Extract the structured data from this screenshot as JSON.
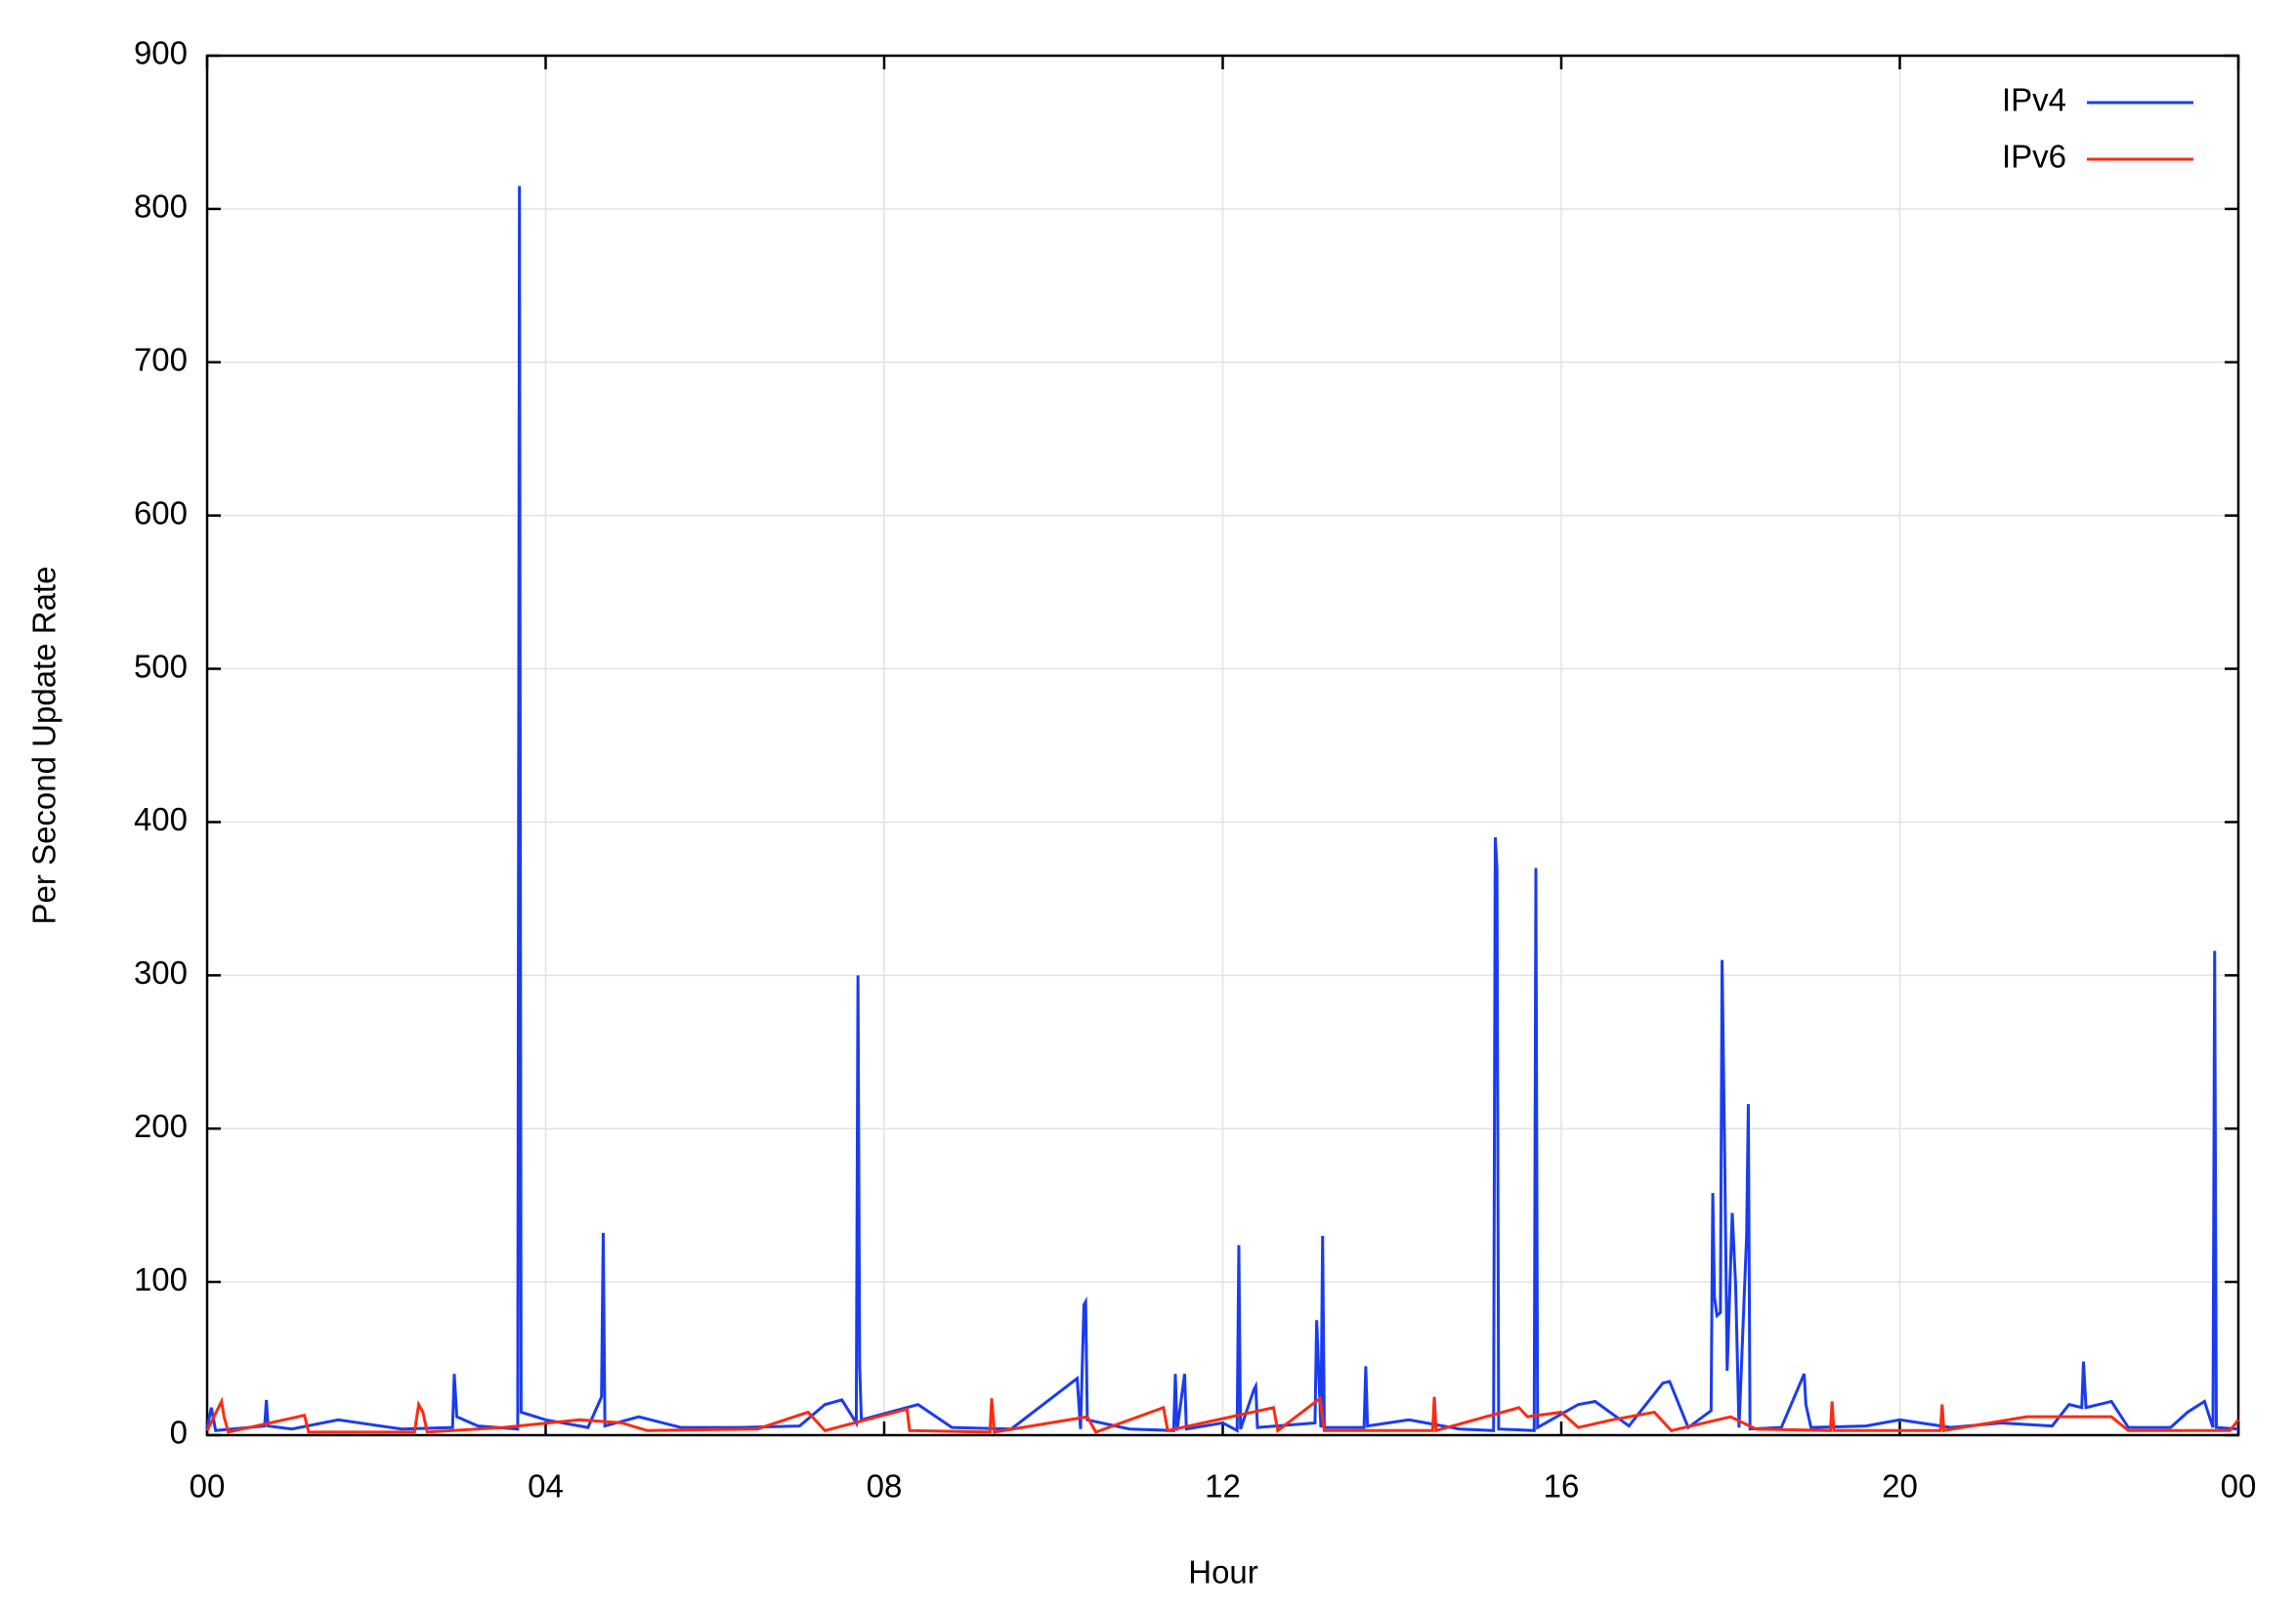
{
  "chart_data": {
    "type": "line",
    "xlabel": "Hour",
    "ylabel": "Per Second Update Rate",
    "xlim": [
      0,
      24
    ],
    "ylim": [
      0,
      900
    ],
    "xticks": [
      {
        "value": 0,
        "label": "00"
      },
      {
        "value": 4,
        "label": "04"
      },
      {
        "value": 8,
        "label": "08"
      },
      12,
      16,
      20,
      {
        "value": 24,
        "label": "00"
      }
    ],
    "yticks": [
      0,
      100,
      200,
      300,
      400,
      500,
      600,
      700,
      800,
      900
    ],
    "grid": true,
    "legend": "upper right",
    "series": [
      {
        "name": "IPv4",
        "color": "#1a3cf0",
        "x": [
          0,
          0.05,
          0.1,
          0.68,
          0.7,
          0.72,
          1.0,
          1.55,
          1.8,
          2.3,
          2.9,
          2.92,
          2.95,
          3.2,
          3.67,
          3.69,
          3.71,
          4.0,
          4.5,
          4.66,
          4.68,
          4.7,
          5.1,
          5.6,
          6.3,
          7.0,
          7.3,
          7.5,
          7.67,
          7.69,
          7.71,
          7.73,
          8.4,
          8.8,
          9.5,
          10.28,
          10.32,
          10.36,
          10.38,
          10.4,
          10.9,
          11.42,
          11.44,
          11.46,
          11.55,
          11.57,
          12.0,
          12.17,
          12.19,
          12.21,
          12.37,
          12.39,
          12.41,
          13.09,
          13.11,
          13.16,
          13.18,
          13.2,
          13.67,
          13.69,
          13.71,
          14.2,
          14.8,
          15.2,
          15.22,
          15.24,
          15.26,
          15.68,
          15.7,
          15.72,
          16.2,
          16.4,
          16.8,
          17.2,
          17.28,
          17.5,
          17.77,
          17.79,
          17.81,
          17.84,
          17.88,
          17.9,
          17.93,
          17.96,
          18.02,
          18.06,
          18.1,
          18.19,
          18.21,
          18.23,
          18.6,
          18.87,
          18.89,
          18.95,
          19.6,
          20.0,
          20.6,
          21.2,
          21.8,
          22.0,
          22.15,
          22.17,
          22.2,
          22.5,
          22.7,
          23.2,
          23.4,
          23.6,
          23.7,
          23.72,
          23.74,
          24
        ],
        "values": [
          5,
          18,
          3,
          6,
          23,
          6,
          4,
          10,
          8,
          4,
          5,
          40,
          12,
          6,
          4,
          815,
          15,
          10,
          5,
          25,
          132,
          6,
          12,
          5,
          5,
          6,
          20,
          23,
          8,
          300,
          45,
          10,
          20,
          5,
          4,
          37,
          4,
          85,
          87,
          10,
          4,
          3,
          40,
          3,
          40,
          4,
          8,
          3,
          124,
          4,
          30,
          32,
          5,
          8,
          75,
          5,
          130,
          5,
          5,
          45,
          6,
          10,
          4,
          3,
          390,
          370,
          4,
          3,
          370,
          5,
          20,
          22,
          6,
          34,
          35,
          5,
          16,
          158,
          90,
          78,
          80,
          310,
          185,
          42,
          145,
          98,
          5,
          130,
          216,
          4,
          5,
          40,
          20,
          5,
          6,
          10,
          5,
          8,
          6,
          20,
          18,
          48,
          18,
          22,
          5,
          5,
          15,
          22,
          5,
          316,
          5,
          4
        ]
      },
      {
        "name": "IPv6",
        "color": "#ff2a10",
        "x": [
          0,
          0.17,
          0.2,
          0.25,
          1.15,
          1.2,
          2.45,
          2.5,
          2.55,
          2.6,
          3.5,
          4.4,
          4.9,
          5.2,
          6.5,
          7.1,
          7.3,
          8.27,
          8.3,
          9.25,
          9.27,
          9.3,
          10.4,
          10.5,
          11.3,
          11.35,
          12.6,
          12.65,
          13.15,
          13.2,
          14.48,
          14.5,
          14.52,
          15.5,
          15.6,
          16.0,
          16.2,
          16.6,
          17.1,
          17.3,
          18.0,
          18.3,
          19.18,
          19.2,
          19.22,
          20.48,
          20.5,
          20.52,
          21.5,
          22.5,
          22.7,
          23.9,
          24
        ],
        "values": [
          3,
          22,
          12,
          2,
          13,
          2,
          2,
          20,
          15,
          2,
          5,
          10,
          8,
          3,
          4,
          15,
          3,
          17,
          3,
          2,
          24,
          2,
          12,
          2,
          18,
          3,
          18,
          3,
          24,
          3,
          3,
          25,
          3,
          18,
          12,
          15,
          5,
          10,
          15,
          3,
          12,
          4,
          3,
          22,
          3,
          3,
          20,
          3,
          12,
          12,
          3,
          3,
          10
        ]
      }
    ]
  }
}
